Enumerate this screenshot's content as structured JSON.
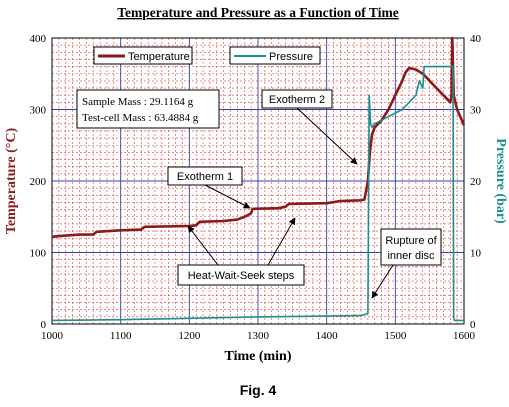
{
  "figure_caption": "Fig. 4",
  "chart_data": {
    "type": "line",
    "title": "Temperature and Pressure as a Function of Time",
    "xlabel": "Time (min)",
    "ylabel_left": "Temperature (°C)",
    "ylabel_right": "Pressure (bar)",
    "xlim": [
      1000,
      1600
    ],
    "ylim_left": [
      0,
      400
    ],
    "ylim_right": [
      0,
      40
    ],
    "xticks": [
      "1000",
      "1100",
      "1200",
      "1300",
      "1400",
      "1500",
      "1600"
    ],
    "yticks_left": [
      "0",
      "100",
      "200",
      "300",
      "400"
    ],
    "yticks_right": [
      "0",
      "10",
      "20",
      "30",
      "40"
    ],
    "grid": true,
    "legend_position": "top",
    "series": [
      {
        "name": "Temperature",
        "axis": "left",
        "color": "#8b1a1a",
        "x": [
          1000,
          1010,
          1040,
          1060,
          1065,
          1100,
          1130,
          1135,
          1200,
          1210,
          1215,
          1250,
          1270,
          1280,
          1285,
          1290,
          1292,
          1330,
          1340,
          1345,
          1400,
          1420,
          1450,
          1455,
          1460,
          1463,
          1466,
          1470,
          1480,
          1490,
          1500,
          1510,
          1515,
          1520,
          1530,
          1540,
          1550,
          1560,
          1570,
          1580,
          1582,
          1583,
          1585,
          1590,
          1600
        ],
        "y": [
          122,
          123,
          125,
          125,
          129,
          131,
          132,
          136,
          137,
          138,
          143,
          144,
          146,
          150,
          152,
          155,
          161,
          162,
          164,
          168,
          169,
          172,
          173,
          174,
          200,
          240,
          265,
          275,
          285,
          300,
          320,
          340,
          352,
          358,
          356,
          350,
          340,
          330,
          320,
          310,
          320,
          400,
          320,
          300,
          278
        ]
      },
      {
        "name": "Pressure",
        "axis": "right",
        "color": "#1a8f8f",
        "x": [
          1000,
          1100,
          1200,
          1300,
          1400,
          1450,
          1455,
          1460,
          1462,
          1464,
          1466,
          1470,
          1480,
          1490,
          1500,
          1510,
          1520,
          1530,
          1535,
          1540,
          1542,
          1560,
          1580,
          1584,
          1585,
          1586,
          1600
        ],
        "y": [
          0.5,
          0.6,
          0.8,
          1.0,
          1.1,
          1.2,
          1.3,
          1.5,
          32,
          28,
          27.5,
          28,
          28.5,
          29,
          29.5,
          30,
          31,
          32,
          34,
          33,
          36,
          36,
          36,
          36,
          1,
          0.5,
          0.5
        ]
      }
    ],
    "annotations": [
      {
        "text": "Sample Mass : 29.1164 g",
        "kind": "info"
      },
      {
        "text": "Test-cell Mass : 63.4884 g",
        "kind": "info"
      },
      {
        "text": "Exotherm 2",
        "kind": "callout"
      },
      {
        "text": "Exotherm 1",
        "kind": "callout"
      },
      {
        "text": "Heat-Wait-Seek steps",
        "kind": "callout"
      },
      {
        "text": "Rupture of",
        "kind": "callout"
      },
      {
        "text": "inner disc",
        "kind": "callout"
      }
    ]
  }
}
